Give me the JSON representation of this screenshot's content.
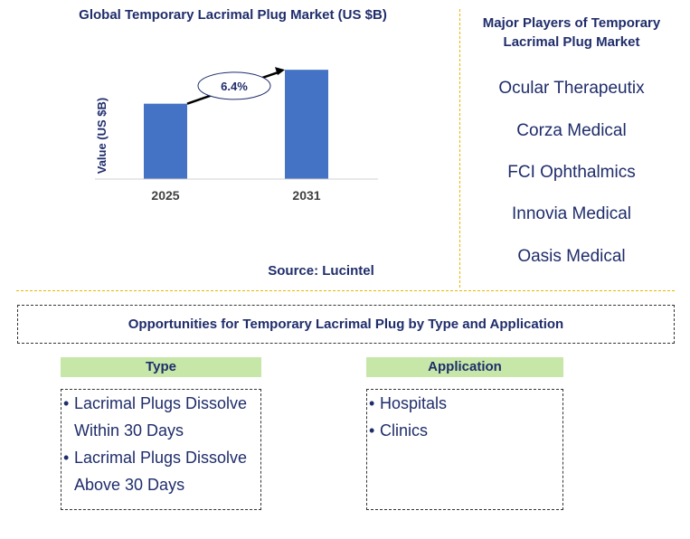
{
  "chart_data": {
    "type": "bar",
    "title": "Global Temporary Lacrimal Plug Market (US $B)",
    "categories": [
      "2025",
      "2031"
    ],
    "values": [
      1.0,
      1.45
    ],
    "ylabel": "Value (US $B)",
    "xlabel": "",
    "ylim": [
      0,
      1.8
    ],
    "grid": false,
    "bar_color": "#4472c4",
    "annotation": "6.4%",
    "source": "Source: Lucintel"
  },
  "players": {
    "title": "Major Players of Temporary Lacrimal Plug Market",
    "items": [
      "Ocular Therapeutix",
      "Corza Medical",
      "FCI Ophthalmics",
      "Innovia Medical",
      "Oasis Medical"
    ]
  },
  "opportunities": {
    "title": "Opportunities for Temporary Lacrimal Plug by Type and Application",
    "type": {
      "header": "Type",
      "items": [
        "Lacrimal Plugs Dissolve Within 30 Days",
        "Lacrimal Plugs Dissolve Above 30 Days"
      ]
    },
    "application": {
      "header": "Application",
      "items": [
        "Hospitals",
        "Clinics"
      ]
    }
  },
  "colors": {
    "text": "#1f2d6b",
    "header_bg": "#c6e7a8",
    "divider": "#e6b800"
  }
}
